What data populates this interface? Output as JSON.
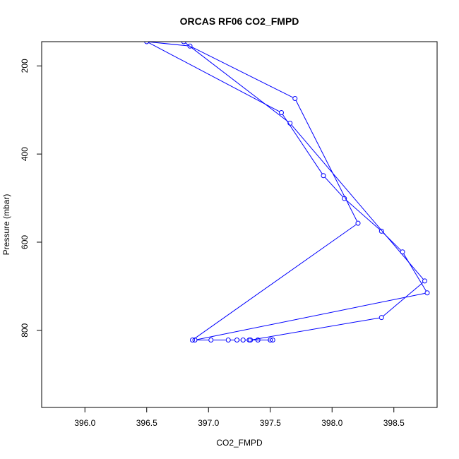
{
  "chart_data": {
    "type": "line",
    "title": "ORCAS RF06 CO2_FMPD",
    "xlabel": "CO2_FMPD",
    "ylabel": "Pressure (mbar)",
    "xlim": [
      395.65,
      398.85
    ],
    "ylim": [
      975,
      145
    ],
    "y_reversed": true,
    "x_ticks": [
      396.0,
      396.5,
      397.0,
      397.5,
      398.0,
      398.5
    ],
    "x_tick_labels": [
      "396.0",
      "396.5",
      "397.0",
      "397.5",
      "398.0",
      "398.5"
    ],
    "y_ticks": [
      200,
      400,
      600,
      800
    ],
    "y_tick_labels": [
      "200",
      "400",
      "600",
      "800"
    ],
    "grid": false,
    "series": [
      {
        "color": "#0000ff",
        "marker": "open-circle",
        "line": true,
        "points": [
          {
            "x": 396.87,
            "y": 822
          },
          {
            "x": 398.21,
            "y": 557
          },
          {
            "x": 397.7,
            "y": 274
          },
          {
            "x": 396.85,
            "y": 155
          },
          {
            "x": 396.5,
            "y": 145
          },
          {
            "x": 397.59,
            "y": 306
          },
          {
            "x": 397.93,
            "y": 449
          },
          {
            "x": 398.1,
            "y": 501
          },
          {
            "x": 398.4,
            "y": 575
          },
          {
            "x": 398.57,
            "y": 622
          },
          {
            "x": 398.77,
            "y": 715
          },
          {
            "x": 396.89,
            "y": 822
          },
          {
            "x": 397.02,
            "y": 822
          },
          {
            "x": 397.16,
            "y": 822
          },
          {
            "x": 397.23,
            "y": 822
          },
          {
            "x": 397.28,
            "y": 822
          },
          {
            "x": 397.33,
            "y": 822
          },
          {
            "x": 397.4,
            "y": 822
          },
          {
            "x": 397.5,
            "y": 822
          },
          {
            "x": 397.52,
            "y": 822
          },
          {
            "x": 397.34,
            "y": 822
          },
          {
            "x": 398.4,
            "y": 771
          },
          {
            "x": 398.75,
            "y": 688
          },
          {
            "x": 397.66,
            "y": 330
          },
          {
            "x": 396.8,
            "y": 145
          }
        ]
      }
    ]
  }
}
